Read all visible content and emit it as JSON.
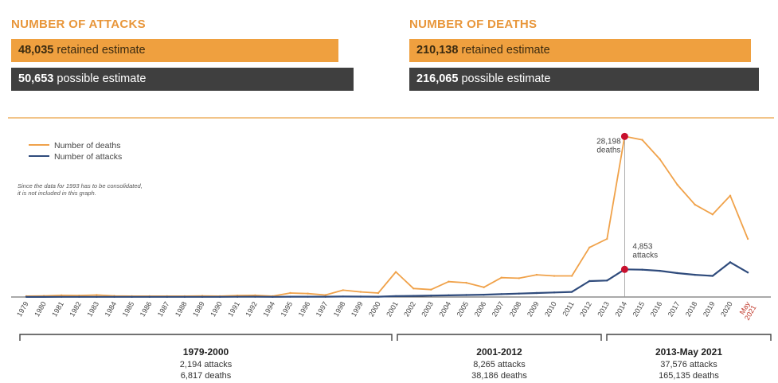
{
  "stats": {
    "attacks": {
      "title": "NUMBER OF ATTACKS",
      "retained_value": "48,035",
      "retained_label": "retained estimate",
      "possible_value": "50,653",
      "possible_label": "possible estimate"
    },
    "deaths": {
      "title": "NUMBER OF DEATHS",
      "retained_value": "210,138",
      "retained_label": "retained estimate",
      "possible_value": "216,065",
      "possible_label": "possible estimate"
    }
  },
  "colors": {
    "deaths": "#f0a24a",
    "attacks": "#2f4b7c",
    "marker": "#c8102e",
    "highlight": "#c0392b"
  },
  "chart_data": {
    "type": "line",
    "x": [
      "1979",
      "1980",
      "1981",
      "1982",
      "1983",
      "1984",
      "1985",
      "1986",
      "1987",
      "1988",
      "1989",
      "1990",
      "1991",
      "1992",
      "1994",
      "1995",
      "1996",
      "1997",
      "1998",
      "1999",
      "2000",
      "2001",
      "2002",
      "2003",
      "2004",
      "2005",
      "2006",
      "2007",
      "2008",
      "2009",
      "2010",
      "2011",
      "2012",
      "2013",
      "2014",
      "2015",
      "2016",
      "2017",
      "2018",
      "2019",
      "2020",
      "May 2021"
    ],
    "highlight_tick": "May 2021",
    "series": [
      {
        "name": "Number of deaths",
        "values": [
          150,
          200,
          300,
          250,
          350,
          200,
          150,
          150,
          150,
          150,
          200,
          150,
          250,
          300,
          150,
          700,
          600,
          350,
          1200,
          900,
          700,
          4400,
          1500,
          1300,
          2700,
          2500,
          1700,
          3400,
          3300,
          3900,
          3700,
          3700,
          8700,
          10200,
          28198,
          27600,
          24200,
          19700,
          16200,
          14500,
          17800,
          10200
        ]
      },
      {
        "name": "Number of attacks",
        "values": [
          20,
          20,
          30,
          30,
          30,
          30,
          25,
          25,
          25,
          25,
          30,
          30,
          40,
          50,
          30,
          60,
          60,
          50,
          80,
          70,
          60,
          150,
          200,
          250,
          300,
          350,
          400,
          500,
          600,
          700,
          800,
          900,
          2800,
          2900,
          4853,
          4800,
          4600,
          4200,
          3900,
          3700,
          6100,
          4300
        ]
      }
    ],
    "ylim": [
      0,
      29500
    ],
    "legend": {
      "position": "top-left",
      "entries": [
        "Number of deaths",
        "Number of attacks"
      ]
    },
    "note": "Since the data for 1993 has to be consolidated, it is not included in this graph.",
    "annotations": [
      {
        "x": "2014",
        "series": "Number of deaths",
        "value_label": "28,198",
        "unit_label": "deaths"
      },
      {
        "x": "2014",
        "series": "Number of attacks",
        "value_label": "4,853",
        "unit_label": "attacks"
      }
    ],
    "periods": [
      {
        "title": "1979-2000",
        "attacks": "2,194 attacks",
        "deaths": "6,817 deaths",
        "from": "1979",
        "to": "2000"
      },
      {
        "title": "2001-2012",
        "attacks": "8,265 attacks",
        "deaths": "38,186 deaths",
        "from": "2001",
        "to": "2012"
      },
      {
        "title": "2013-May 2021",
        "attacks": "37,576 attacks",
        "deaths": "165,135 deaths",
        "from": "2013",
        "to": "May 2021"
      }
    ]
  }
}
